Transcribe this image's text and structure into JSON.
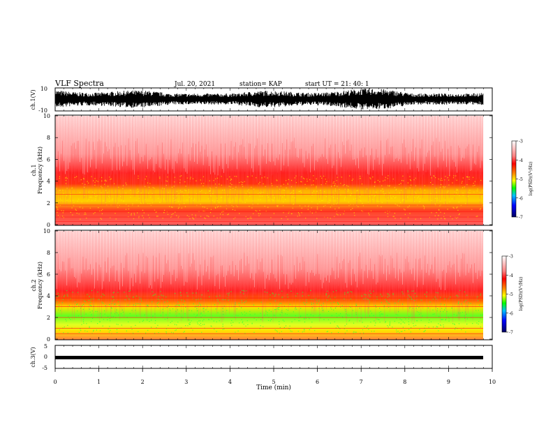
{
  "header": {
    "title": "VLF Spectra",
    "date": "Jul. 20, 2021",
    "station": "station= KAP",
    "start": "start UT = 21: 40: 1"
  },
  "chart_data": [
    {
      "type": "line",
      "panel": "waveform-ch1",
      "ylabel": "ch.1(V)",
      "ylim": [
        -10,
        10
      ],
      "yticks": [
        "10",
        "-10"
      ],
      "description_series": {
        "name": "",
        "values": []
      }
    },
    {
      "type": "heatmap",
      "panel": "spectrogram-ch1",
      "ylabel": "ch.1 Frequency (kHz)",
      "ylim": [
        0,
        10
      ],
      "yticks": [
        "0",
        "2",
        "4",
        "6",
        "8",
        "10"
      ],
      "colorbar": {
        "label": "log(PSD)(V²/Hz)",
        "range": [
          -7,
          -3
        ],
        "ticks": [
          "-3",
          "-4",
          "-5",
          "-6",
          "-7"
        ]
      }
    },
    {
      "type": "heatmap",
      "panel": "spectrogram-ch2",
      "ylabel": "ch.2 Frequency (kHz)",
      "ylim": [
        0,
        10
      ],
      "yticks": [
        "0",
        "2",
        "4",
        "6",
        "8",
        "10"
      ],
      "colorbar": {
        "label": "log(PSD)(V²/Hz)",
        "range": [
          -7,
          -3
        ],
        "ticks": [
          "-3",
          "-4",
          "-5",
          "-6",
          "-7"
        ]
      }
    },
    {
      "type": "line",
      "panel": "waveform-ch3",
      "ylabel": "ch.3(V)",
      "ylim": [
        -5,
        5
      ],
      "yticks": [
        "5",
        "0",
        "-5"
      ]
    }
  ],
  "xaxis": {
    "label": "Time (min)",
    "range": [
      0,
      10
    ],
    "ticks": [
      "0",
      "1",
      "2",
      "3",
      "4",
      "5",
      "6",
      "7",
      "8",
      "9",
      "10"
    ]
  },
  "colors": {
    "spectro_bg": "#ff3030",
    "spectro_high": "#ffdddd",
    "yellow": "#ffe000",
    "green": "#40ff20",
    "waveform": "#000000"
  }
}
